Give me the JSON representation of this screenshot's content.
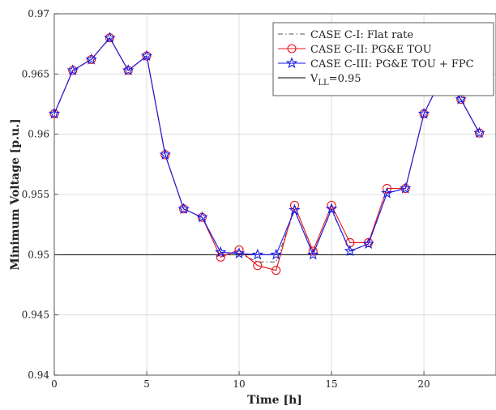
{
  "chart_data": {
    "type": "line",
    "xlabel": "Time [h]",
    "ylabel": "Minimum Voltage [p.u.]",
    "xlim": [
      0,
      24
    ],
    "ylim": [
      0.94,
      0.97
    ],
    "x_ticks": [
      0,
      5,
      10,
      15,
      20
    ],
    "x_tick_labels": [
      "0",
      "5",
      "10",
      "15",
      "20"
    ],
    "y_ticks": [
      0.94,
      0.945,
      0.95,
      0.955,
      0.96,
      0.965,
      0.97
    ],
    "y_tick_labels": [
      "0.94",
      "0.945",
      "0.95",
      "0.955",
      "0.96",
      "0.965",
      "0.97"
    ],
    "grid": true,
    "legend_position": "top-right",
    "x": [
      0,
      1,
      2,
      3,
      4,
      5,
      6,
      7,
      8,
      9,
      10,
      11,
      12,
      13,
      14,
      15,
      16,
      17,
      18,
      19,
      20,
      21,
      22,
      23
    ],
    "series": [
      {
        "name": "CASE C-I:   Flat rate",
        "color": "#555555",
        "style": "dash-dot",
        "marker": "none",
        "values": [
          0.9617,
          0.9653,
          0.9662,
          0.968,
          0.9653,
          0.9665,
          0.9583,
          0.9538,
          0.9531,
          0.9502,
          0.9501,
          0.9494,
          0.9494,
          0.9537,
          0.9501,
          0.9537,
          0.9503,
          0.9509,
          0.9551,
          0.9555,
          0.9617,
          0.9648,
          0.9629,
          0.9601
        ]
      },
      {
        "name": "CASE C-II:  PG&E TOU",
        "color": "#e8141b",
        "style": "solid",
        "marker": "circle",
        "values": [
          0.9617,
          0.9653,
          0.9662,
          0.968,
          0.9653,
          0.9665,
          0.9583,
          0.9538,
          0.9531,
          0.9498,
          0.9504,
          0.9491,
          0.9487,
          0.9541,
          0.9503,
          0.9541,
          0.951,
          0.951,
          0.9555,
          0.9555,
          0.9617,
          0.9648,
          0.9629,
          0.9601
        ]
      },
      {
        "name": "CASE C-III: PG&E TOU + FPC",
        "color": "#1a1ae6",
        "style": "solid",
        "marker": "star",
        "values": [
          0.9617,
          0.9653,
          0.9662,
          0.968,
          0.9653,
          0.9665,
          0.9583,
          0.9538,
          0.9531,
          0.9502,
          0.9501,
          0.95,
          0.95,
          0.9537,
          0.95,
          0.9538,
          0.9503,
          0.9509,
          0.9551,
          0.9555,
          0.9617,
          0.9648,
          0.9629,
          0.9601
        ]
      }
    ],
    "reference_line": {
      "y": 0.95,
      "color": "#000000",
      "legend_main": "V",
      "legend_sub": "LL",
      "legend_rest": "=0.95"
    }
  }
}
